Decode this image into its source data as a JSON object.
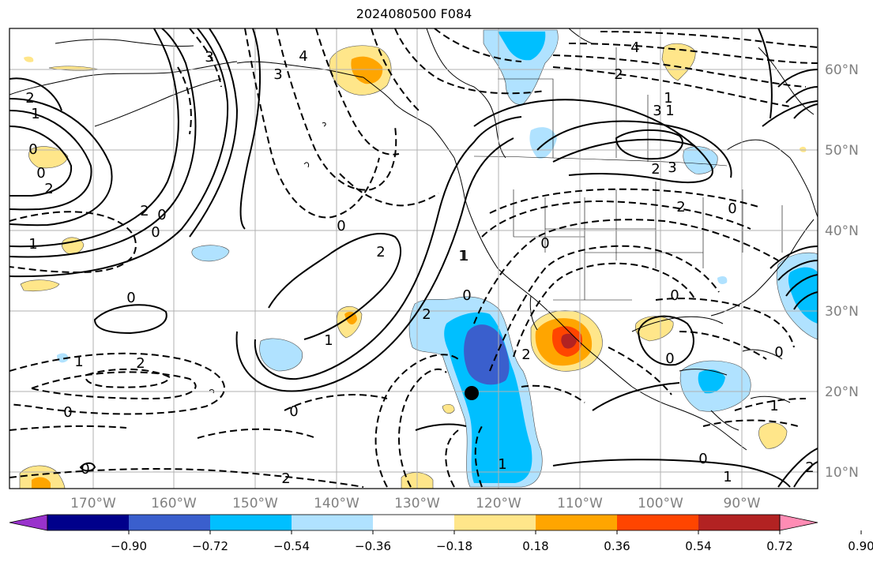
{
  "title": "2024080500 F084",
  "axes": {
    "longitude_labels": [
      "170°W",
      "160°W",
      "150°W",
      "140°W",
      "130°W",
      "120°W",
      "110°W",
      "100°W",
      "90°W"
    ],
    "latitude_labels": [
      "60°N",
      "50°N",
      "40°N",
      "30°N",
      "20°N",
      "10°N"
    ],
    "label_color": "#808080"
  },
  "colorbar": {
    "tick_labels": [
      "−0.90",
      "−0.72",
      "−0.54",
      "−0.36",
      "−0.18",
      "0.18",
      "0.36",
      "0.54",
      "0.72",
      "0.90"
    ],
    "colors": [
      "#9932cc",
      "#00008b",
      "#3a5fcd",
      "#00bfff",
      "#b0e2ff",
      "#ffffff",
      "#ffe68a",
      "#ffa500",
      "#ff4500",
      "#b22222",
      "#ff8cb4"
    ]
  },
  "shading_colors": {
    "neg_light": "#b0e2ff",
    "neg_mid": "#00bfff",
    "neg_strong": "#3a5fcd",
    "pos_light": "#ffe68a",
    "pos_mid": "#ffa500",
    "pos_strong": "#ff4500",
    "pos_max": "#b22222"
  },
  "contour_labels": [
    {
      "text": "2"
    },
    {
      "text": "1"
    },
    {
      "text": "0"
    },
    {
      "text": "0"
    },
    {
      "text": "2"
    },
    {
      "text": "2"
    },
    {
      "text": "0"
    },
    {
      "text": "0"
    },
    {
      "text": "1"
    },
    {
      "text": "3"
    },
    {
      "text": "4"
    },
    {
      "text": "3"
    },
    {
      "text": "0"
    },
    {
      "text": "2"
    },
    {
      "text": "1"
    },
    {
      "text": "0"
    },
    {
      "text": "1"
    },
    {
      "text": "2"
    },
    {
      "text": "0"
    },
    {
      "text": "0"
    },
    {
      "text": "2"
    },
    {
      "text": "2"
    },
    {
      "text": "1"
    },
    {
      "text": "2"
    },
    {
      "text": "1"
    },
    {
      "text": "0"
    },
    {
      "text": "0"
    },
    {
      "text": "2"
    },
    {
      "text": "3"
    },
    {
      "text": "2"
    },
    {
      "text": "0"
    },
    {
      "text": "1"
    },
    {
      "text": "4"
    },
    {
      "text": "0"
    },
    {
      "text": "2"
    },
    {
      "text": "0"
    },
    {
      "text": "0"
    },
    {
      "text": "1"
    },
    {
      "text": "0"
    },
    {
      "text": "1"
    },
    {
      "text": "2"
    },
    {
      "text": "0"
    },
    {
      "text": "3"
    },
    {
      "text": "1"
    },
    {
      "text": "1"
    }
  ],
  "marker": {
    "name": "storm-center-dot",
    "color": "#000000"
  }
}
